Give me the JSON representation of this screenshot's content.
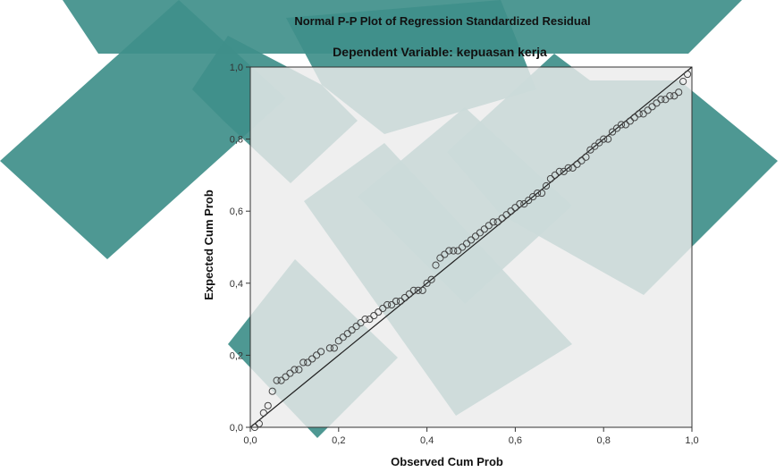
{
  "chart_data": {
    "type": "scatter",
    "title": "Normal P-P Plot of Regression Standardized Residual",
    "subtitle": "Dependent Variable: kepuasan kerja",
    "xlabel": "Observed Cum Prob",
    "ylabel": "Expected Cum Prob",
    "xlim": [
      0,
      1
    ],
    "ylim": [
      0,
      1
    ],
    "x_ticks": [
      "0,0",
      "0,2",
      "0,4",
      "0,6",
      "0,8",
      "1,0"
    ],
    "y_ticks": [
      "0,0",
      "0,2",
      "0,4",
      "0,6",
      "0,8",
      "1,0"
    ],
    "reference_line": {
      "x": [
        0,
        1
      ],
      "y": [
        0,
        1
      ]
    },
    "grid": false,
    "plot_background": "#ececec",
    "watermark_color": "#3f8f8a",
    "points": {
      "x": [
        0.01,
        0.02,
        0.03,
        0.04,
        0.05,
        0.06,
        0.07,
        0.08,
        0.09,
        0.1,
        0.11,
        0.12,
        0.13,
        0.14,
        0.15,
        0.16,
        0.18,
        0.19,
        0.2,
        0.21,
        0.22,
        0.23,
        0.24,
        0.25,
        0.26,
        0.27,
        0.28,
        0.29,
        0.3,
        0.31,
        0.32,
        0.33,
        0.34,
        0.35,
        0.36,
        0.37,
        0.38,
        0.39,
        0.4,
        0.41,
        0.42,
        0.43,
        0.44,
        0.45,
        0.46,
        0.47,
        0.48,
        0.49,
        0.5,
        0.51,
        0.52,
        0.53,
        0.54,
        0.55,
        0.56,
        0.57,
        0.58,
        0.59,
        0.6,
        0.61,
        0.62,
        0.63,
        0.64,
        0.65,
        0.66,
        0.67,
        0.68,
        0.69,
        0.7,
        0.71,
        0.72,
        0.73,
        0.74,
        0.75,
        0.76,
        0.77,
        0.78,
        0.79,
        0.8,
        0.81,
        0.82,
        0.83,
        0.84,
        0.85,
        0.86,
        0.87,
        0.88,
        0.89,
        0.9,
        0.91,
        0.92,
        0.93,
        0.94,
        0.95,
        0.96,
        0.97,
        0.98,
        0.99
      ],
      "y": [
        0.0,
        0.01,
        0.04,
        0.06,
        0.1,
        0.13,
        0.13,
        0.14,
        0.15,
        0.16,
        0.16,
        0.18,
        0.18,
        0.19,
        0.2,
        0.21,
        0.22,
        0.22,
        0.24,
        0.25,
        0.26,
        0.27,
        0.28,
        0.29,
        0.3,
        0.3,
        0.31,
        0.32,
        0.33,
        0.34,
        0.34,
        0.35,
        0.35,
        0.36,
        0.37,
        0.38,
        0.38,
        0.38,
        0.4,
        0.41,
        0.45,
        0.47,
        0.48,
        0.49,
        0.49,
        0.49,
        0.5,
        0.51,
        0.52,
        0.53,
        0.54,
        0.55,
        0.56,
        0.57,
        0.57,
        0.58,
        0.59,
        0.6,
        0.61,
        0.62,
        0.62,
        0.63,
        0.64,
        0.65,
        0.65,
        0.67,
        0.69,
        0.7,
        0.71,
        0.71,
        0.72,
        0.72,
        0.73,
        0.74,
        0.75,
        0.77,
        0.78,
        0.79,
        0.8,
        0.8,
        0.82,
        0.83,
        0.84,
        0.84,
        0.85,
        0.86,
        0.87,
        0.87,
        0.88,
        0.89,
        0.9,
        0.91,
        0.91,
        0.92,
        0.92,
        0.93,
        0.96,
        0.98
      ]
    }
  }
}
